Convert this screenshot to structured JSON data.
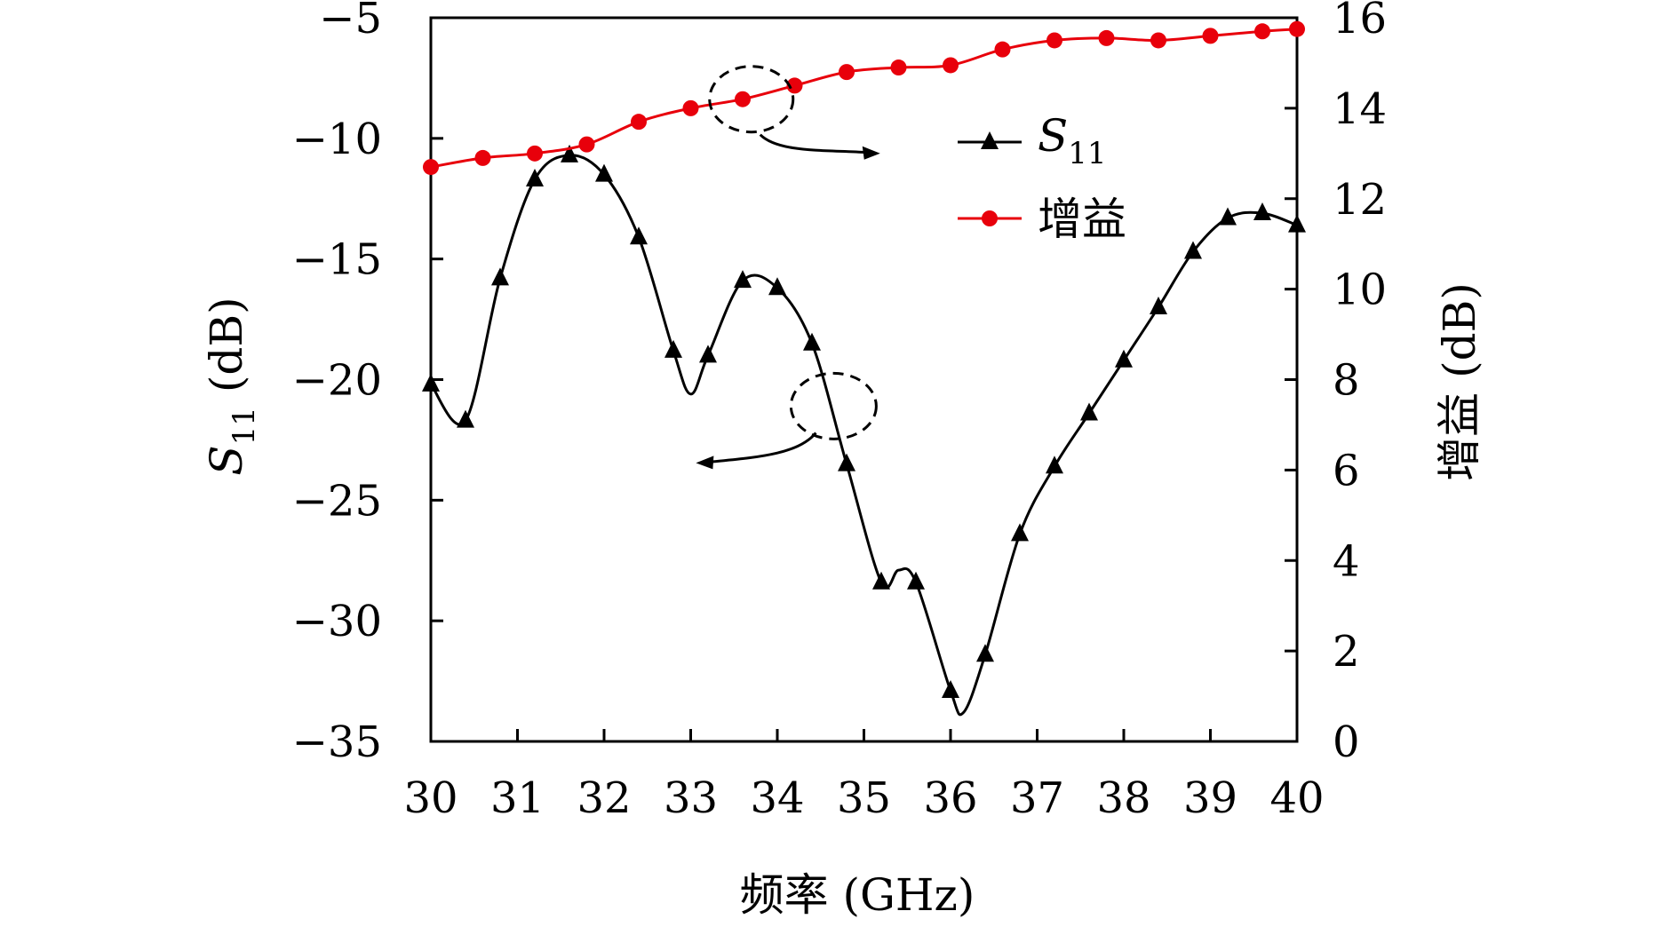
{
  "chart_data": {
    "type": "line",
    "xlabel": "频率 (GHz)",
    "ylabel_left": "S11 (dB)",
    "ylabel_left_main": "S",
    "ylabel_left_sub": "11",
    "ylabel_left_unit": " (dB)",
    "ylabel_right": "增益 (dB)",
    "xlim": [
      30,
      40
    ],
    "ylim_left": [
      -35,
      -5
    ],
    "ylim_right": [
      0,
      16
    ],
    "x_ticks": [
      30,
      31,
      32,
      33,
      34,
      35,
      36,
      37,
      38,
      39,
      40
    ],
    "y_left_ticks": [
      -35,
      -30,
      -25,
      -20,
      -15,
      -10,
      -5
    ],
    "y_right_ticks": [
      0,
      2,
      4,
      6,
      8,
      10,
      12,
      14,
      16
    ],
    "grid": false,
    "legend_position": "top-right",
    "series": [
      {
        "name": "S11",
        "name_main": "S",
        "name_sub": "11",
        "axis": "left",
        "color": "#000000",
        "marker": "triangle",
        "x": [
          30,
          30.4,
          30.8,
          31.2,
          31.6,
          32.0,
          32.4,
          32.8,
          33.0,
          33.2,
          33.6,
          34.0,
          34.4,
          34.8,
          35.2,
          35.4,
          35.6,
          36.0,
          36.15,
          36.4,
          36.8,
          37.2,
          37.6,
          38.0,
          38.4,
          38.8,
          39.2,
          39.6,
          40.0
        ],
        "y": [
          -20.2,
          -21.7,
          -15.8,
          -11.7,
          -10.7,
          -11.5,
          -14.1,
          -18.8,
          -20.6,
          -19.0,
          -15.9,
          -16.2,
          -18.5,
          -23.5,
          -28.4,
          -27.9,
          -28.4,
          -32.9,
          -33.8,
          -31.4,
          -26.4,
          -23.6,
          -21.4,
          -19.2,
          -17.0,
          -14.7,
          -13.3,
          -13.1,
          -13.6
        ],
        "marker_indices": [
          0,
          1,
          2,
          3,
          4,
          5,
          6,
          7,
          9,
          10,
          11,
          12,
          13,
          14,
          16,
          17,
          19,
          20,
          21,
          22,
          23,
          24,
          25,
          26,
          27,
          28
        ]
      },
      {
        "name": "增益",
        "axis": "right",
        "color": "#e8000b",
        "marker": "circle",
        "x": [
          30,
          30.6,
          31.2,
          31.8,
          32.4,
          33.0,
          33.6,
          34.2,
          34.8,
          35.4,
          36.0,
          36.6,
          37.2,
          37.8,
          38.4,
          39.0,
          39.6,
          40.0
        ],
        "y": [
          12.7,
          12.9,
          13.0,
          13.2,
          13.7,
          14.0,
          14.2,
          14.5,
          14.8,
          14.9,
          14.95,
          15.3,
          15.5,
          15.55,
          15.5,
          15.6,
          15.7,
          15.75
        ]
      }
    ],
    "annotations": [
      {
        "type": "dashed-ellipse",
        "target_series": "增益",
        "arrow_direction": "right"
      },
      {
        "type": "dashed-ellipse",
        "target_series": "S11",
        "arrow_direction": "left"
      }
    ]
  }
}
